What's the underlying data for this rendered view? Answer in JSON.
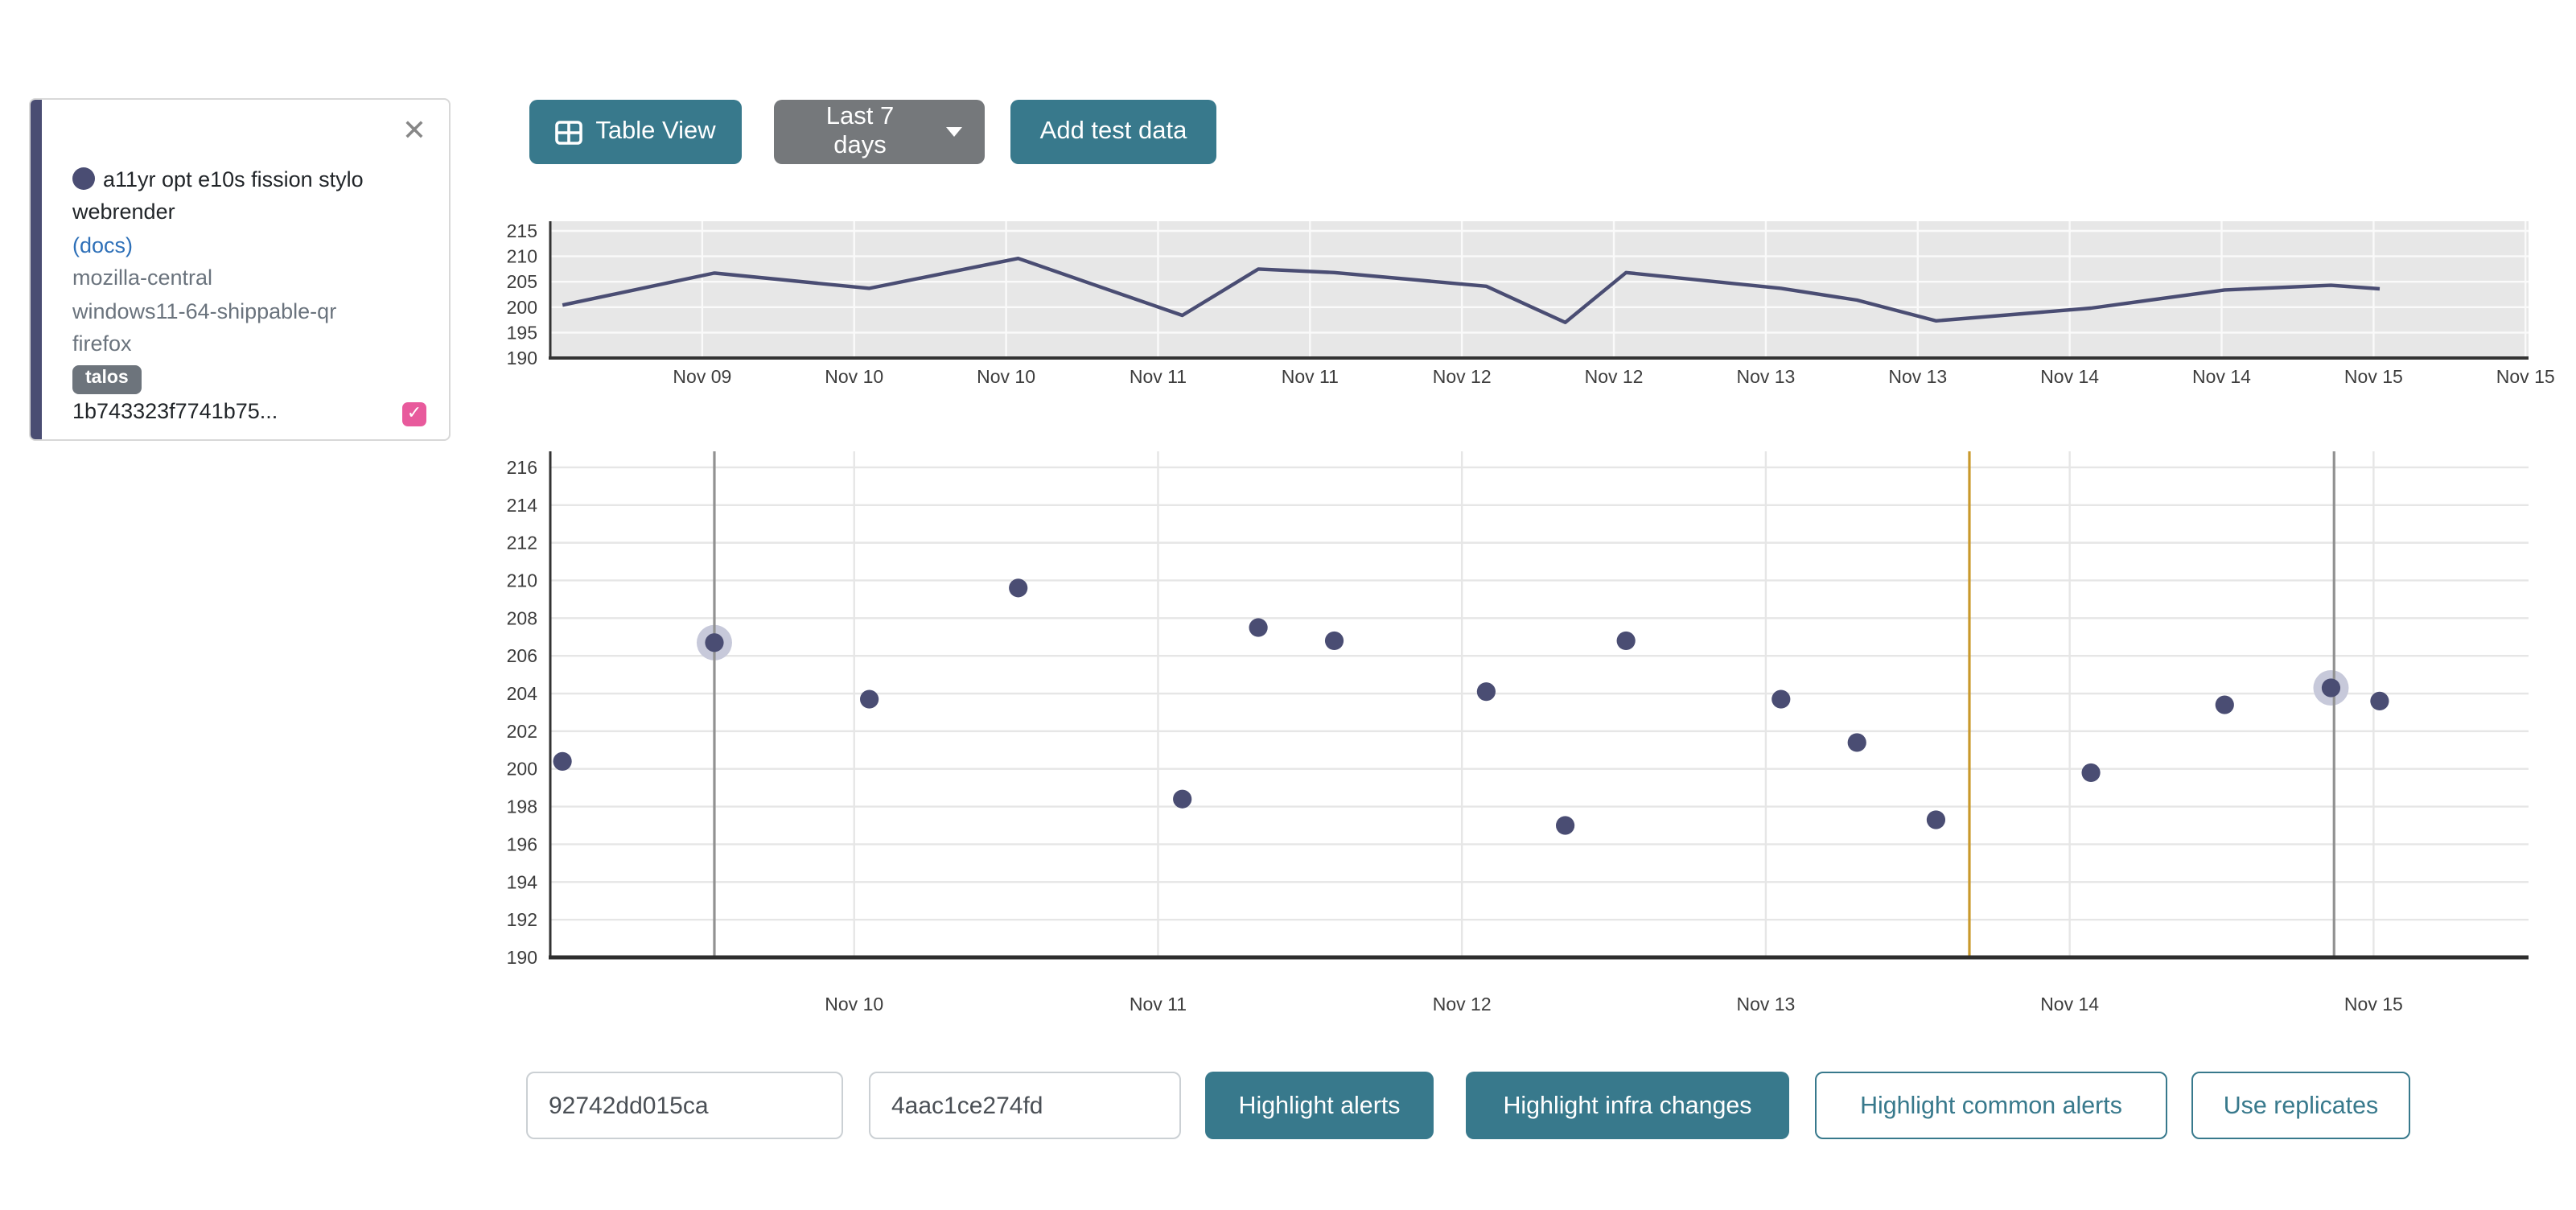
{
  "test_card": {
    "title": "a11yr opt e10s fission stylo webrender",
    "docs_link": "(docs)",
    "repository": "mozilla-central",
    "platform": "windows11-64-shippable-qr",
    "application": "firefox",
    "framework_badge": "talos",
    "revision": "1b743323f7741b75...",
    "checkbox_checked": true,
    "close_icon": "✕",
    "check_glyph": "✓"
  },
  "toolbar": {
    "table_view_label": "Table View",
    "range_label": "Last 7 days",
    "add_test_data_label": "Add test data"
  },
  "footer": {
    "revision_input_1": "92742dd015ca",
    "revision_input_2": "4aac1ce274fd",
    "highlight_alerts_label": "Highlight alerts",
    "highlight_infra_label": "Highlight infra changes",
    "highlight_common_label": "Highlight common alerts",
    "use_replicates_label": "Use replicates"
  },
  "colors": {
    "teal": "#38798c",
    "gray_button": "#75787b",
    "navy": "#4a4d73",
    "halo": "#c7c9da",
    "overview_bg": "#e7e7e7",
    "overview_grid": "#fafafa",
    "main_grid": "#e6e6e6",
    "axis": "#333333",
    "vline_gray": "#919191",
    "vline_yellow": "#c9992d",
    "checkbox_pink": "#e85a9c",
    "tick_text": "#3d3d3d"
  },
  "chart_data": {
    "type": "scatter",
    "title": "",
    "xlabel": "",
    "ylabel": "",
    "x_unit": "days since Nov 09",
    "points": [
      [
        0.04,
        200.4
      ],
      [
        0.54,
        206.7
      ],
      [
        1.05,
        203.7
      ],
      [
        1.54,
        209.6
      ],
      [
        2.08,
        198.4
      ],
      [
        2.33,
        207.5
      ],
      [
        2.58,
        206.8
      ],
      [
        3.08,
        204.1
      ],
      [
        3.34,
        197.0
      ],
      [
        3.54,
        206.8
      ],
      [
        4.05,
        203.7
      ],
      [
        4.3,
        201.4
      ],
      [
        4.56,
        197.3
      ],
      [
        5.07,
        199.8
      ],
      [
        5.51,
        203.4
      ],
      [
        5.86,
        204.3
      ],
      [
        6.02,
        203.6
      ]
    ],
    "highlighted_point_indexes": [
      1,
      15
    ],
    "overview": {
      "chart_type": "line",
      "ylim": [
        190,
        216.9
      ],
      "xlim": [
        0,
        6.51
      ],
      "y_ticks": [
        190,
        195,
        200,
        205,
        210,
        215
      ],
      "x_ticks": [
        {
          "d": 0.5,
          "label": "Nov 09"
        },
        {
          "d": 1.0,
          "label": "Nov 10"
        },
        {
          "d": 1.5,
          "label": "Nov 10"
        },
        {
          "d": 2.0,
          "label": "Nov 11"
        },
        {
          "d": 2.5,
          "label": "Nov 11"
        },
        {
          "d": 3.0,
          "label": "Nov 12"
        },
        {
          "d": 3.5,
          "label": "Nov 12"
        },
        {
          "d": 4.0,
          "label": "Nov 13"
        },
        {
          "d": 4.5,
          "label": "Nov 13"
        },
        {
          "d": 5.0,
          "label": "Nov 14"
        },
        {
          "d": 5.5,
          "label": "Nov 14"
        },
        {
          "d": 6.0,
          "label": "Nov 15"
        },
        {
          "d": 6.5,
          "label": "Nov 15"
        }
      ]
    },
    "main": {
      "chart_type": "scatter",
      "ylim": [
        190,
        216.85
      ],
      "xlim": [
        0,
        6.51
      ],
      "y_ticks": [
        190,
        192,
        194,
        196,
        198,
        200,
        202,
        204,
        206,
        208,
        210,
        212,
        214,
        216
      ],
      "x_ticks": [
        {
          "d": 1,
          "label": "Nov 10"
        },
        {
          "d": 2,
          "label": "Nov 11"
        },
        {
          "d": 3,
          "label": "Nov 12"
        },
        {
          "d": 4,
          "label": "Nov 13"
        },
        {
          "d": 5,
          "label": "Nov 14"
        },
        {
          "d": 6,
          "label": "Nov 15"
        }
      ],
      "vlines": [
        {
          "d": 0.54,
          "color": "#919191",
          "kind": "selected-revision"
        },
        {
          "d": 4.67,
          "color": "#c9992d",
          "kind": "infra-change"
        },
        {
          "d": 5.87,
          "color": "#919191",
          "kind": "selected-revision"
        }
      ]
    }
  }
}
